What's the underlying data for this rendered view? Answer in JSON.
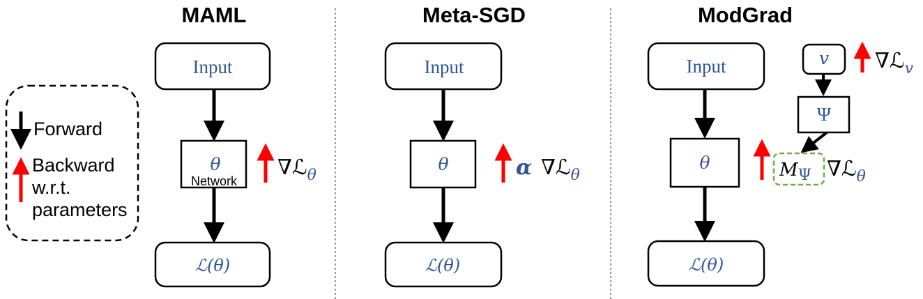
{
  "panels": [
    {
      "title": "MAML",
      "input": "Input",
      "param": "θ",
      "param_caption": "Network",
      "loss": "ℒ(θ)",
      "grad_symbol": "∇ℒ",
      "grad_sub": "θ"
    },
    {
      "title": "Meta-SGD",
      "input": "Input",
      "param": "θ",
      "loss": "ℒ(θ)",
      "grad_prefix": "α",
      "grad_symbol": "∇ℒ",
      "grad_sub": "θ"
    },
    {
      "title": "ModGrad",
      "input": "Input",
      "param": "θ",
      "loss": "ℒ(θ)",
      "v_label": "v",
      "v_grad_symbol": "∇ℒ",
      "v_grad_sub": "v",
      "psi_label": "Ψ",
      "modulator_base": "M",
      "modulator_sub": "Ψ",
      "grad_symbol": "∇ℒ",
      "grad_sub": "θ"
    }
  ],
  "legend": {
    "forward": "Forward",
    "backward_lines": [
      "Backward",
      "w.r.t.",
      "parameters"
    ]
  },
  "colors": {
    "arrow": "#000000",
    "backward_arrow": "#ff0000",
    "label_blue": "#2f5597",
    "modulator_border": "#70ad47"
  }
}
